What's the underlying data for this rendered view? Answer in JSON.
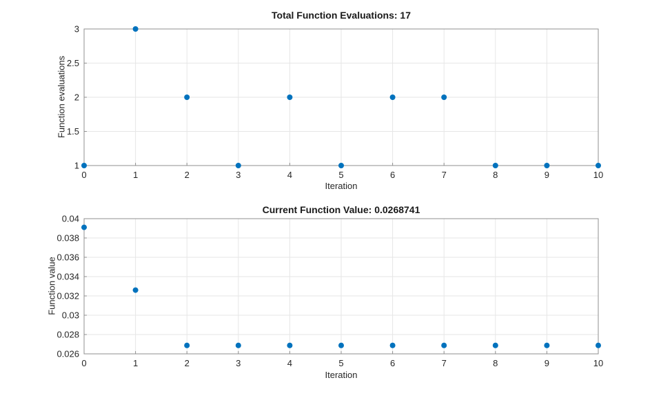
{
  "style": {
    "background": "#ffffff",
    "axis_color": "#8f8f8f",
    "grid_color": "#e6e6e6",
    "tick_label_color": "#262626",
    "title_color": "#1a1a1a",
    "marker_color": "#0072bd"
  },
  "chart_data": [
    {
      "type": "scatter",
      "title": "Total Function Evaluations: 17",
      "xlabel": "Iteration",
      "ylabel": "Function evaluations",
      "x": [
        0,
        1,
        2,
        3,
        4,
        5,
        6,
        7,
        8,
        9,
        10
      ],
      "y": [
        1,
        3,
        2,
        1,
        2,
        1,
        2,
        2,
        1,
        1,
        1
      ],
      "xlim": [
        0,
        10
      ],
      "ylim": [
        1,
        3
      ],
      "xticks": [
        0,
        1,
        2,
        3,
        4,
        5,
        6,
        7,
        8,
        9,
        10
      ],
      "xtick_labels": [
        "0",
        "1",
        "2",
        "3",
        "4",
        "5",
        "6",
        "7",
        "8",
        "9",
        "10"
      ],
      "yticks": [
        1,
        1.5,
        2,
        2.5,
        3
      ],
      "ytick_labels": [
        "1",
        "1.5",
        "2",
        "2.5",
        "3"
      ],
      "grid": true,
      "marker": {
        "shape": "circle",
        "color": "#0072bd",
        "radius": 4
      },
      "total_function_evaluations": 17
    },
    {
      "type": "scatter",
      "title": "Current Function Value: 0.0268741",
      "xlabel": "Iteration",
      "ylabel": "Function value",
      "x": [
        0,
        1,
        2,
        3,
        4,
        5,
        6,
        7,
        8,
        9,
        10
      ],
      "y": [
        0.0391,
        0.0326,
        0.0268741,
        0.0268741,
        0.0268741,
        0.0268741,
        0.0268741,
        0.0268741,
        0.0268741,
        0.0268741,
        0.0268741
      ],
      "xlim": [
        0,
        10
      ],
      "ylim": [
        0.026,
        0.04
      ],
      "xticks": [
        0,
        1,
        2,
        3,
        4,
        5,
        6,
        7,
        8,
        9,
        10
      ],
      "xtick_labels": [
        "0",
        "1",
        "2",
        "3",
        "4",
        "5",
        "6",
        "7",
        "8",
        "9",
        "10"
      ],
      "yticks": [
        0.026,
        0.028,
        0.03,
        0.032,
        0.034,
        0.036,
        0.038,
        0.04
      ],
      "ytick_labels": [
        "0.026",
        "0.028",
        "0.03",
        "0.032",
        "0.034",
        "0.036",
        "0.038",
        "0.04"
      ],
      "grid": true,
      "marker": {
        "shape": "circle",
        "color": "#0072bd",
        "radius": 4
      },
      "current_function_value": 0.0268741
    }
  ]
}
